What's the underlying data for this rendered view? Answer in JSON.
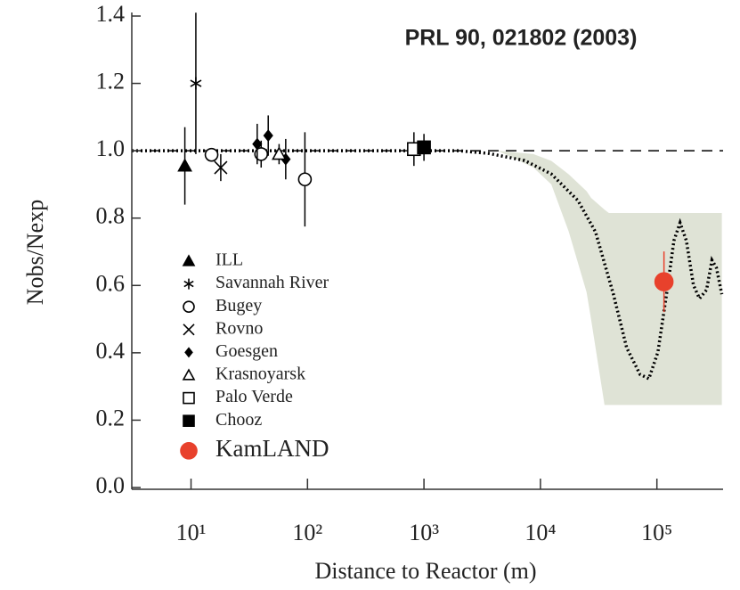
{
  "chart_data": {
    "type": "scatter",
    "annotation": "PRL 90, 021802 (2003)",
    "x_label": "Distance to Reactor (m)",
    "y_label": "Nobs/Nexp",
    "log_x": true,
    "legend": "lower left",
    "xlim": [
      3.1,
      370000
    ],
    "ylim": [
      0,
      1.4
    ],
    "xticks": [
      {
        "value": 10,
        "label": "10¹"
      },
      {
        "value": 100,
        "label": "10²"
      },
      {
        "value": 1000,
        "label": "10³"
      },
      {
        "value": 10000,
        "label": "10⁴"
      },
      {
        "value": 100000,
        "label": "10⁵"
      }
    ],
    "yticks": [
      {
        "value": 0,
        "label": "0.0"
      },
      {
        "value": 0.2,
        "label": "0.2"
      },
      {
        "value": 0.4,
        "label": "0.4"
      },
      {
        "value": 0.6,
        "label": "0.6"
      },
      {
        "value": 0.8,
        "label": "0.8"
      },
      {
        "value": 1.0,
        "label": "1.0"
      },
      {
        "value": 1.2,
        "label": "1.2"
      },
      {
        "value": 1.4,
        "label": "1.4"
      }
    ],
    "reference_line": 1.0,
    "series": [
      {
        "name": "ILL",
        "marker": "triangle-filled",
        "color": "#000000",
        "x": [
          8.85
        ],
        "values": [
          0.955
        ],
        "errors": [
          0.115
        ]
      },
      {
        "name": "Savannah River",
        "marker": "asterisk",
        "color": "#000000",
        "x": [
          11
        ],
        "values": [
          1.2
        ],
        "errors": [
          0.21
        ]
      },
      {
        "name": "Bugey",
        "marker": "circle-open",
        "color": "#000000",
        "x": [
          15,
          40,
          95
        ],
        "values": [
          0.988,
          0.99,
          0.915
        ],
        "errors": [
          0.02,
          0.04,
          0.14
        ]
      },
      {
        "name": "Rovno",
        "marker": "cross",
        "color": "#000000",
        "x": [
          18
        ],
        "values": [
          0.95
        ],
        "errors": [
          0.04
        ]
      },
      {
        "name": "Goesgen",
        "marker": "diamond-filled",
        "color": "#000000",
        "x": [
          37,
          46,
          65
        ],
        "values": [
          1.02,
          1.045,
          0.975
        ],
        "errors": [
          0.06,
          0.06,
          0.06
        ]
      },
      {
        "name": "Krasnoyarsk",
        "marker": "triangle-open",
        "color": "#000000",
        "x": [
          57
        ],
        "values": [
          0.99
        ],
        "errors": [
          0.03
        ]
      },
      {
        "name": "Palo Verde",
        "marker": "square-open",
        "color": "#000000",
        "x": [
          820
        ],
        "values": [
          1.005
        ],
        "errors": [
          0.05
        ]
      },
      {
        "name": "Chooz",
        "marker": "square-filled",
        "color": "#000000",
        "x": [
          1000
        ],
        "values": [
          1.01
        ],
        "errors": [
          0.04
        ]
      },
      {
        "name": "KamLAND",
        "marker": "circle-filled",
        "color": "#e8412c",
        "x": [
          115000
        ],
        "values": [
          0.611
        ],
        "errors": [
          0.09
        ]
      }
    ],
    "curve": {
      "color": "#000000",
      "x": [
        3.1,
        2000,
        3600,
        7300,
        12400,
        21000,
        29700,
        42300,
        55000,
        71600,
        85300,
        102000,
        121000,
        140000,
        158000,
        179000,
        206000,
        232000,
        267000,
        297000,
        324000,
        361000
      ],
      "values": [
        1.0,
        1.0,
        0.992,
        0.971,
        0.931,
        0.852,
        0.759,
        0.574,
        0.415,
        0.336,
        0.323,
        0.402,
        0.574,
        0.733,
        0.786,
        0.733,
        0.601,
        0.561,
        0.587,
        0.675,
        0.653,
        0.574
      ]
    },
    "band": {
      "color": "#dfe3d6",
      "x": [
        4300,
        8700,
        12400,
        17500,
        24900,
        27200,
        35500,
        38700,
        361000
      ],
      "high": [
        1.0,
        0.99,
        0.97,
        0.93,
        0.88,
        0.86,
        0.825,
        0.815,
        0.815
      ],
      "low": [
        1.0,
        0.95,
        0.9,
        0.76,
        0.58,
        0.5,
        0.245,
        0.245,
        0.245
      ]
    }
  }
}
